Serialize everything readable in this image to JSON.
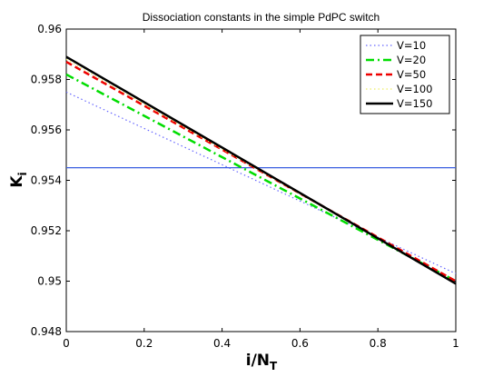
{
  "chart_data": {
    "type": "line",
    "title": "Dissociation constants in the simple PdPC switch",
    "xlabel": {
      "main": "i/N",
      "sub": "T"
    },
    "ylabel": {
      "main": "K",
      "sub": "i"
    },
    "xlim": [
      0,
      1
    ],
    "ylim": [
      0.948,
      0.96
    ],
    "xticks": [
      "0",
      "0.2",
      "0.4",
      "0.6",
      "0.8",
      "1"
    ],
    "yticks": [
      "0.948",
      "0.95",
      "0.952",
      "0.954",
      "0.956",
      "0.958",
      "0.96"
    ],
    "grid": false,
    "legend_position": "top-right",
    "series": [
      {
        "name": "V=10",
        "x": [
          0,
          1
        ],
        "y": [
          0.9575,
          0.9503
        ],
        "color": "#6666ff",
        "dash": "1.5 3",
        "width": 1.2
      },
      {
        "name": "V=20",
        "x": [
          0,
          1
        ],
        "y": [
          0.9582,
          0.95
        ],
        "color": "#00dd00",
        "dash": "9 4 2 4",
        "width": 2.5
      },
      {
        "name": "V=50",
        "x": [
          0,
          1
        ],
        "y": [
          0.9587,
          0.95
        ],
        "color": "#ee0000",
        "dash": "7 4",
        "width": 2.5
      },
      {
        "name": "V=100",
        "x": [
          0,
          1
        ],
        "y": [
          0.9588,
          0.9499
        ],
        "color": "#eeee66",
        "dash": "1.5 3",
        "width": 1.2
      },
      {
        "name": "V=150",
        "x": [
          0,
          1
        ],
        "y": [
          0.9589,
          0.9499
        ],
        "color": "#000000",
        "dash": "",
        "width": 2.5
      }
    ],
    "reference_line": {
      "y": 0.9545,
      "color": "#3a5fe0"
    }
  }
}
